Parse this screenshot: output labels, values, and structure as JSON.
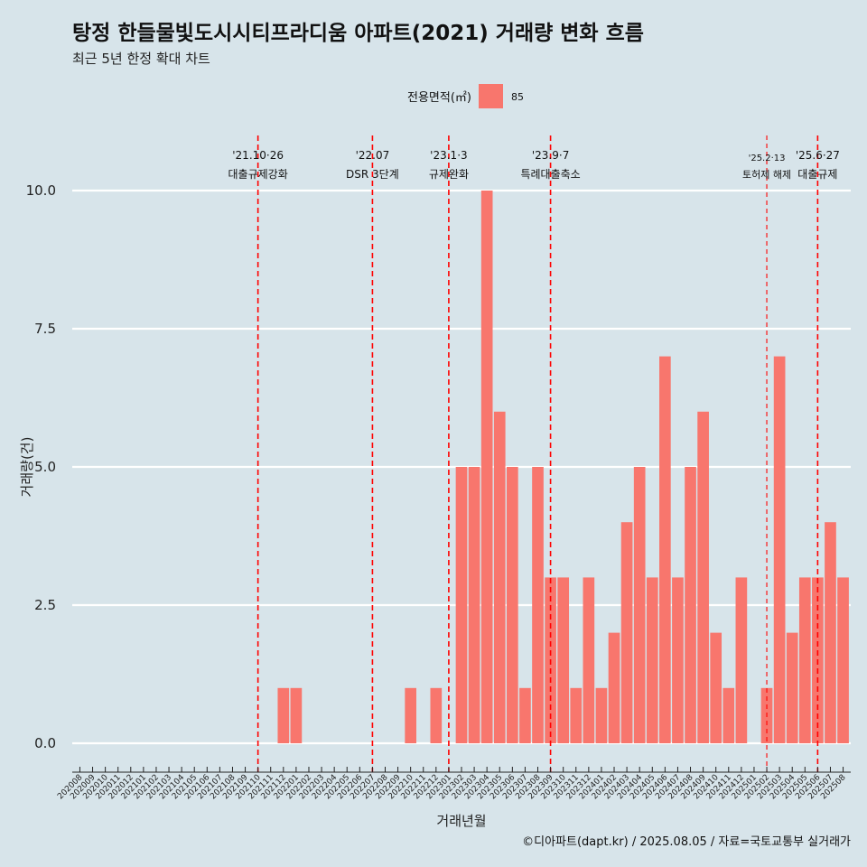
{
  "chart_data": {
    "type": "bar",
    "title": "탕정 한들물빛도시시티프라디움 아파트(2021) 거래량 변화 흐름",
    "subtitle": "최근 5년 한정 확대 차트",
    "xlabel": "거래년월",
    "ylabel": "거래량(건)",
    "ylim": [
      0,
      10
    ],
    "yticks": [
      "0.0",
      "2.5",
      "5.0",
      "7.5",
      "10.0"
    ],
    "legend": {
      "title": "전용면적(㎡)",
      "entries": [
        {
          "label": "85",
          "color": "#f8766d"
        }
      ],
      "position": "top"
    },
    "grid": true,
    "bar_color": "#f8766d",
    "categories": [
      "202008",
      "202009",
      "202010",
      "202011",
      "202012",
      "202101",
      "202102",
      "202103",
      "202104",
      "202105",
      "202106",
      "202107",
      "202108",
      "202109",
      "202110",
      "202111",
      "202112",
      "202201",
      "202202",
      "202203",
      "202204",
      "202205",
      "202206",
      "202207",
      "202208",
      "202209",
      "202210",
      "202211",
      "202212",
      "202301",
      "202302",
      "202303",
      "202304",
      "202305",
      "202306",
      "202307",
      "202308",
      "202309",
      "202310",
      "202311",
      "202312",
      "202401",
      "202402",
      "202403",
      "202404",
      "202405",
      "202406",
      "202407",
      "202408",
      "202409",
      "202410",
      "202411",
      "202412",
      "202501",
      "202502",
      "202503",
      "202504",
      "202505",
      "202506",
      "202507",
      "202508"
    ],
    "values": [
      0,
      0,
      0,
      0,
      0,
      0,
      0,
      0,
      0,
      0,
      0,
      0,
      0,
      0,
      0,
      0,
      1,
      1,
      0,
      0,
      0,
      0,
      0,
      0,
      0,
      0,
      1,
      0,
      1,
      0,
      5,
      5,
      10,
      6,
      5,
      1,
      5,
      3,
      3,
      1,
      3,
      1,
      2,
      4,
      5,
      3,
      7,
      3,
      5,
      6,
      2,
      1,
      3,
      0,
      1,
      7,
      2,
      3,
      3,
      4,
      3
    ],
    "events": [
      {
        "category": "202110",
        "date": "'21.10·26",
        "label": "대출규제강화",
        "style": "major"
      },
      {
        "category": "202207",
        "date": "'22.07",
        "label": "DSR 3단계",
        "style": "major"
      },
      {
        "category": "202301",
        "date": "'23.1·3",
        "label": "규제완화",
        "style": "major"
      },
      {
        "category": "202309",
        "date": "'23.9·7",
        "label": "특례대출축소",
        "style": "major"
      },
      {
        "category": "202502",
        "date": "'25.2·13",
        "label": "토허제 해제",
        "style": "minor"
      },
      {
        "category": "202506",
        "date": "'25.6·27",
        "label": "대출규제",
        "style": "major"
      }
    ],
    "event_line_color": "#ff0000"
  },
  "caption": "©디아파트(dapt.kr) / 2025.08.05 / 자료=국토교통부 실거래가"
}
